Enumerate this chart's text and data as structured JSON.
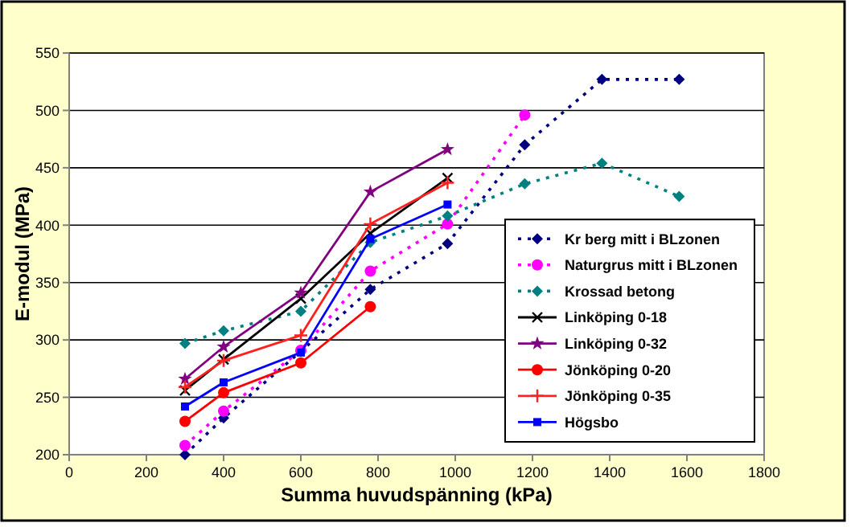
{
  "chart_data": {
    "type": "line",
    "xlabel": "Summa huvudspänning (kPa)",
    "ylabel": "E-modul (MPa)",
    "xlim": [
      0,
      1800
    ],
    "xticks": [
      0,
      200,
      400,
      600,
      800,
      1000,
      1200,
      1400,
      1600,
      1800
    ],
    "ylim": [
      200,
      550
    ],
    "yticks": [
      200,
      250,
      300,
      350,
      400,
      450,
      500,
      550
    ],
    "grid": "y",
    "legend": "bottom right",
    "series": [
      {
        "name": "Kr berg mitt i BLzonen",
        "color": "#000080",
        "marker": "diamond",
        "line_style": "dotted",
        "x": [
          300,
          400,
          600,
          780,
          980,
          1180,
          1380,
          1580
        ],
        "values": [
          200,
          232,
          290,
          344,
          384,
          470,
          527,
          527
        ]
      },
      {
        "name": "Naturgrus mitt i BLzonen",
        "color": "#ff00ff",
        "marker": "circle",
        "line_style": "dotted",
        "x": [
          300,
          400,
          600,
          780,
          980,
          1180
        ],
        "values": [
          208,
          238,
          291,
          360,
          401,
          496
        ]
      },
      {
        "name": "Krossad betong",
        "color": "#008080",
        "marker": "diamond",
        "line_style": "dotted",
        "x": [
          300,
          400,
          600,
          780,
          980,
          1180,
          1380,
          1580
        ],
        "values": [
          297,
          308,
          325,
          385,
          408,
          436,
          454,
          425
        ]
      },
      {
        "name": "Linköping 0-18",
        "color": "#000000",
        "marker": "cross",
        "line_style": "solid",
        "x": [
          300,
          400,
          600,
          780,
          980
        ],
        "values": [
          256,
          283,
          336,
          393,
          441
        ]
      },
      {
        "name": "Linköping 0-32",
        "color": "#800080",
        "marker": "star",
        "line_style": "solid",
        "x": [
          300,
          400,
          600,
          780,
          980
        ],
        "values": [
          266,
          294,
          341,
          429,
          466
        ]
      },
      {
        "name": "Jönköping 0-20",
        "color": "#ff0000",
        "marker": "circle",
        "line_style": "solid",
        "x": [
          300,
          400,
          600,
          780
        ],
        "values": [
          229,
          254,
          280,
          329
        ]
      },
      {
        "name": "Jönköping 0-35",
        "color": "#ff2020",
        "marker": "plus",
        "line_style": "solid",
        "x": [
          300,
          400,
          600,
          780,
          980
        ],
        "values": [
          259,
          282,
          304,
          401,
          437
        ]
      },
      {
        "name": "Högsbo",
        "color": "#0000ff",
        "marker": "square",
        "line_style": "solid",
        "x": [
          300,
          400,
          600,
          780,
          980
        ],
        "values": [
          242,
          263,
          289,
          388,
          418
        ]
      }
    ]
  }
}
